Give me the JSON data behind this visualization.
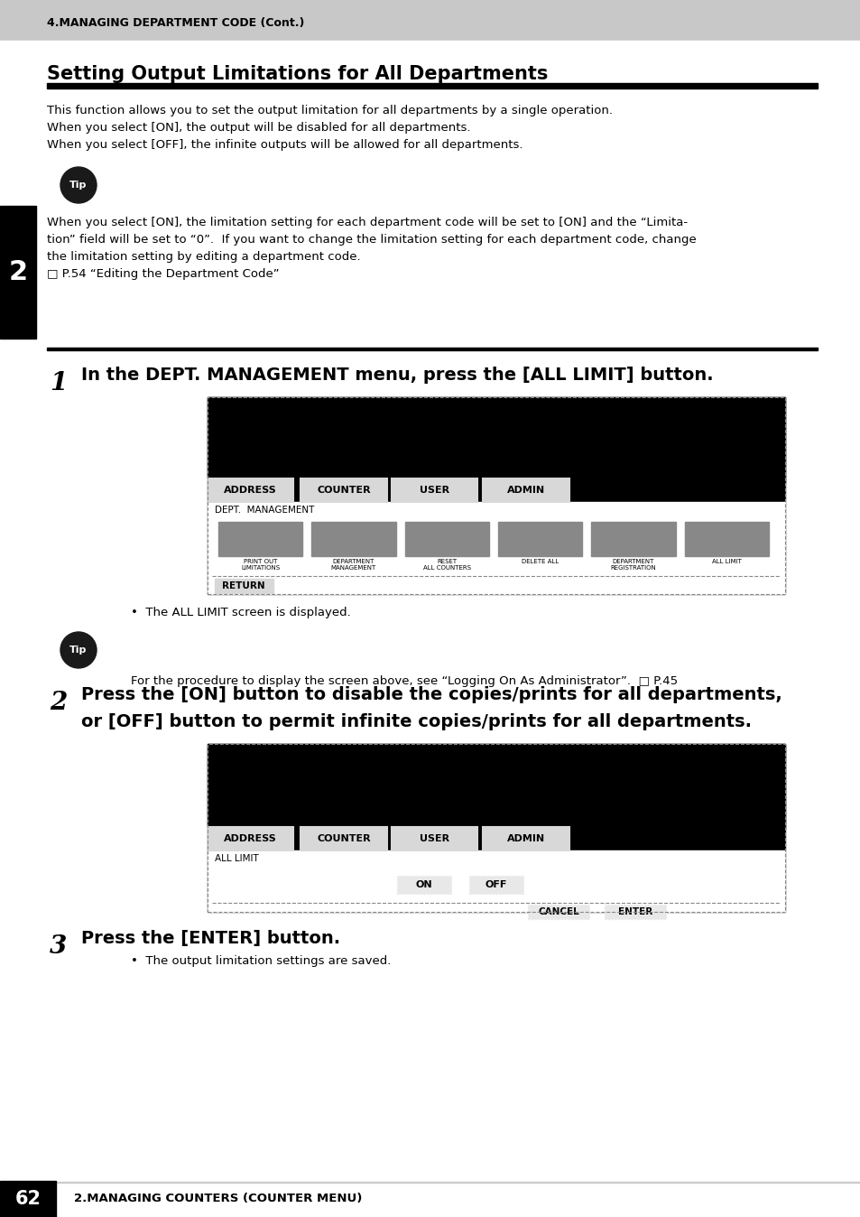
{
  "page_bg": "#ffffff",
  "header_bg": "#c8c8c8",
  "header_text": "4.MANAGING DEPARTMENT CODE (Cont.)",
  "footer_num": "62",
  "footer_text": "2.MANAGING COUNTERS (COUNTER MENU)",
  "title": "Setting Output Limitations for All Departments",
  "intro_lines": [
    "This function allows you to set the output limitation for all departments by a single operation.",
    "When you select [ON], the output will be disabled for all departments.",
    "When you select [OFF], the infinite outputs will be allowed for all departments."
  ],
  "tip_bg": "#1a1a1a",
  "tip_text": "Tip",
  "tip_body_lines": [
    "When you select [ON], the limitation setting for each department code will be set to [ON] and the “Limita-",
    "tion” field will be set to “0”.  If you want to change the limitation setting for each department code, change",
    "the limitation setting by editing a department code.",
    "□ P.54 “Editing the Department Code”"
  ],
  "sidebar_num": "2",
  "step1_label": "1",
  "step1_text": "In the DEPT. MANAGEMENT menu, press the [ALL LIMIT] button.",
  "step1_bullet": "The ALL LIMIT screen is displayed.",
  "step2_label": "2",
  "step2_line1": "Press the [ON] button to disable the copies/prints for all departments,",
  "step2_line2": "or [OFF] button to permit infinite copies/prints for all departments.",
  "step3_label": "3",
  "step3_text": "Press the [ENTER] button.",
  "step3_bullet": "The output limitation settings are saved.",
  "tip2_text": "For the procedure to display the screen above, see “Logging On As Administrator”.  □ P.45",
  "tab_labels": [
    "ADDRESS",
    "COUNTER",
    "USER",
    "ADMIN"
  ],
  "icon_labels": [
    "PRINT OUT\nLIMITATIONS",
    "DEPARTMENT\nMANAGEMENT",
    "RESET\nALL COUNTERS",
    "DELETE ALL",
    "DEPARTMENT\nREGISTRATION",
    "ALL LIMIT"
  ]
}
